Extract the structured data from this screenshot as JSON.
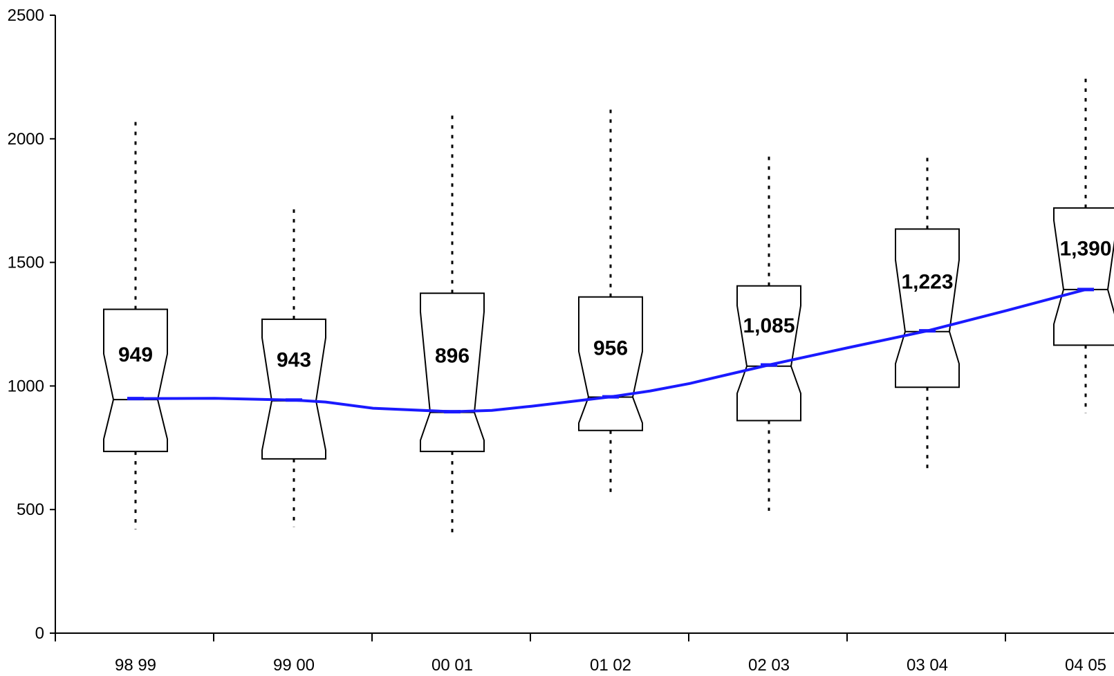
{
  "chart_data": {
    "type": "box",
    "title": "",
    "xlabel": "",
    "ylabel": "",
    "ylim": [
      0,
      2500
    ],
    "yticks": [
      0,
      500,
      1000,
      1500,
      2000,
      2500
    ],
    "ytick_labels": [
      "0",
      "500",
      "1000",
      "1500",
      "2000",
      "2500"
    ],
    "categories": [
      "98 99",
      "99 00",
      "00 01",
      "01 02",
      "02 03",
      "03 04",
      "04 05"
    ],
    "boxes": [
      {
        "whisker_low": 420,
        "q1": 735,
        "median": 945,
        "q3": 1310,
        "whisker_high": 2085,
        "notch_low": 785,
        "notch_high": 1130,
        "mean": 949,
        "label": "949"
      },
      {
        "whisker_low": 430,
        "q1": 705,
        "median": 940,
        "q3": 1270,
        "whisker_high": 1715,
        "notch_low": 740,
        "notch_high": 1195,
        "mean": 943,
        "label": "943"
      },
      {
        "whisker_low": 395,
        "q1": 735,
        "median": 893,
        "q3": 1375,
        "whisker_high": 2100,
        "notch_low": 780,
        "notch_high": 1300,
        "mean": 896,
        "label": "896"
      },
      {
        "whisker_low": 560,
        "q1": 820,
        "median": 955,
        "q3": 1360,
        "whisker_high": 2130,
        "notch_low": 850,
        "notch_high": 1140,
        "mean": 956,
        "label": "956"
      },
      {
        "whisker_low": 495,
        "q1": 860,
        "median": 1080,
        "q3": 1405,
        "whisker_high": 1930,
        "notch_low": 970,
        "notch_high": 1325,
        "mean": 1085,
        "label": "1,085"
      },
      {
        "whisker_low": 665,
        "q1": 995,
        "median": 1220,
        "q3": 1635,
        "whisker_high": 1925,
        "notch_low": 1090,
        "notch_high": 1510,
        "mean": 1223,
        "label": "1,223"
      },
      {
        "whisker_low": 890,
        "q1": 1165,
        "median": 1390,
        "q3": 1720,
        "whisker_high": 2265,
        "notch_low": 1250,
        "notch_high": 1670,
        "mean": 1390,
        "label": "1,390"
      }
    ],
    "trend_line": {
      "color": "#1a1aff",
      "x": [
        0,
        0.5,
        1,
        1.2,
        1.5,
        2,
        2.25,
        2.5,
        3,
        3.25,
        3.5,
        4,
        4.5,
        5,
        5.5,
        6
      ],
      "y": [
        949,
        950,
        943,
        935,
        910,
        896,
        901,
        918,
        956,
        980,
        1010,
        1085,
        1155,
        1223,
        1305,
        1390
      ]
    },
    "grid": false,
    "legend": "none"
  }
}
